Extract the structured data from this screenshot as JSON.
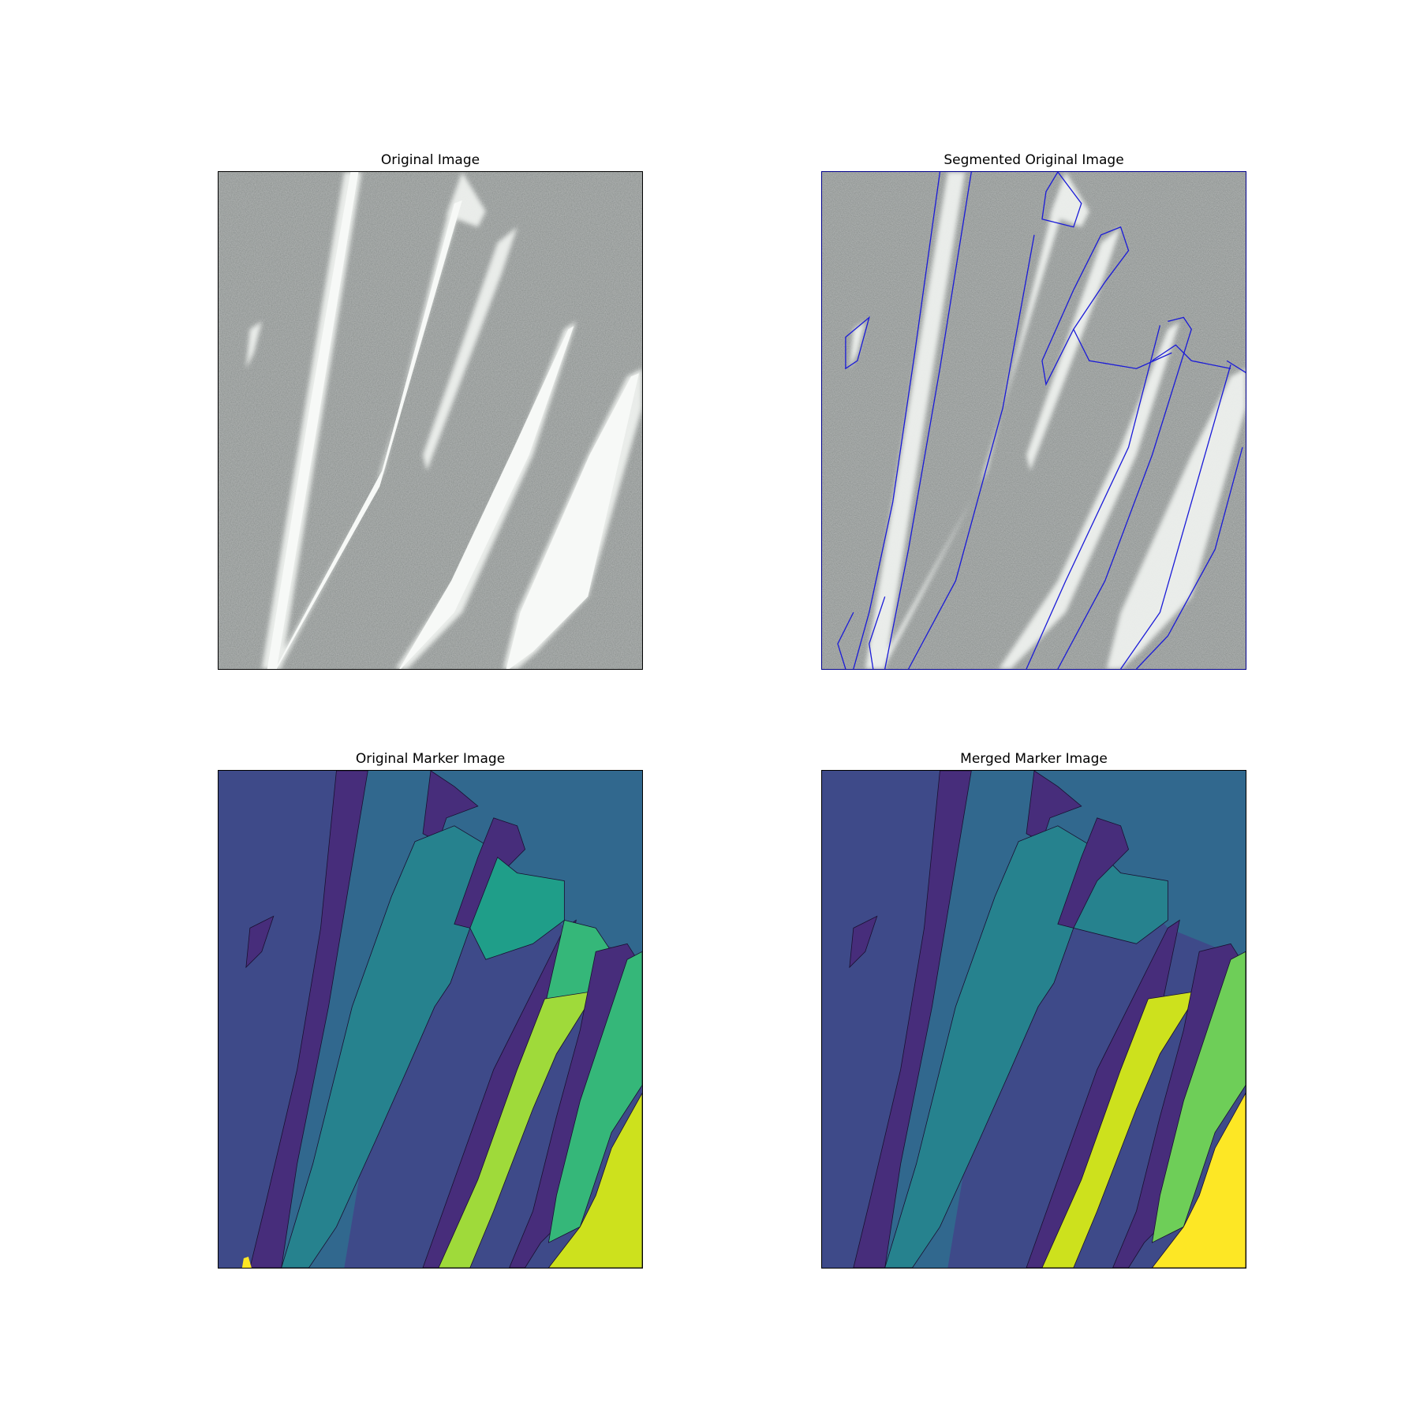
{
  "figure": {
    "panels": [
      {
        "id": "original",
        "title": "Original Image"
      },
      {
        "id": "segmented",
        "title": "Segmented Original Image"
      },
      {
        "id": "original-markers",
        "title": "Original Marker Image"
      },
      {
        "id": "merged-markers",
        "title": "Merged Marker Image"
      }
    ]
  },
  "colors": {
    "background": "#ffffff",
    "gray_base": "#767676",
    "streak": "#e8ebe8",
    "segment_outline": "#1010d0",
    "viridis_dark": "#472d7b",
    "viridis_1": "#3e4a89",
    "viridis_2": "#31688e",
    "viridis_3": "#26828e",
    "viridis_4": "#1f9e89",
    "viridis_5": "#35b779",
    "viridis_6": "#6ece58",
    "viridis_7": "#9fda3a",
    "viridis_8": "#cde11d",
    "viridis_9": "#fde725"
  }
}
